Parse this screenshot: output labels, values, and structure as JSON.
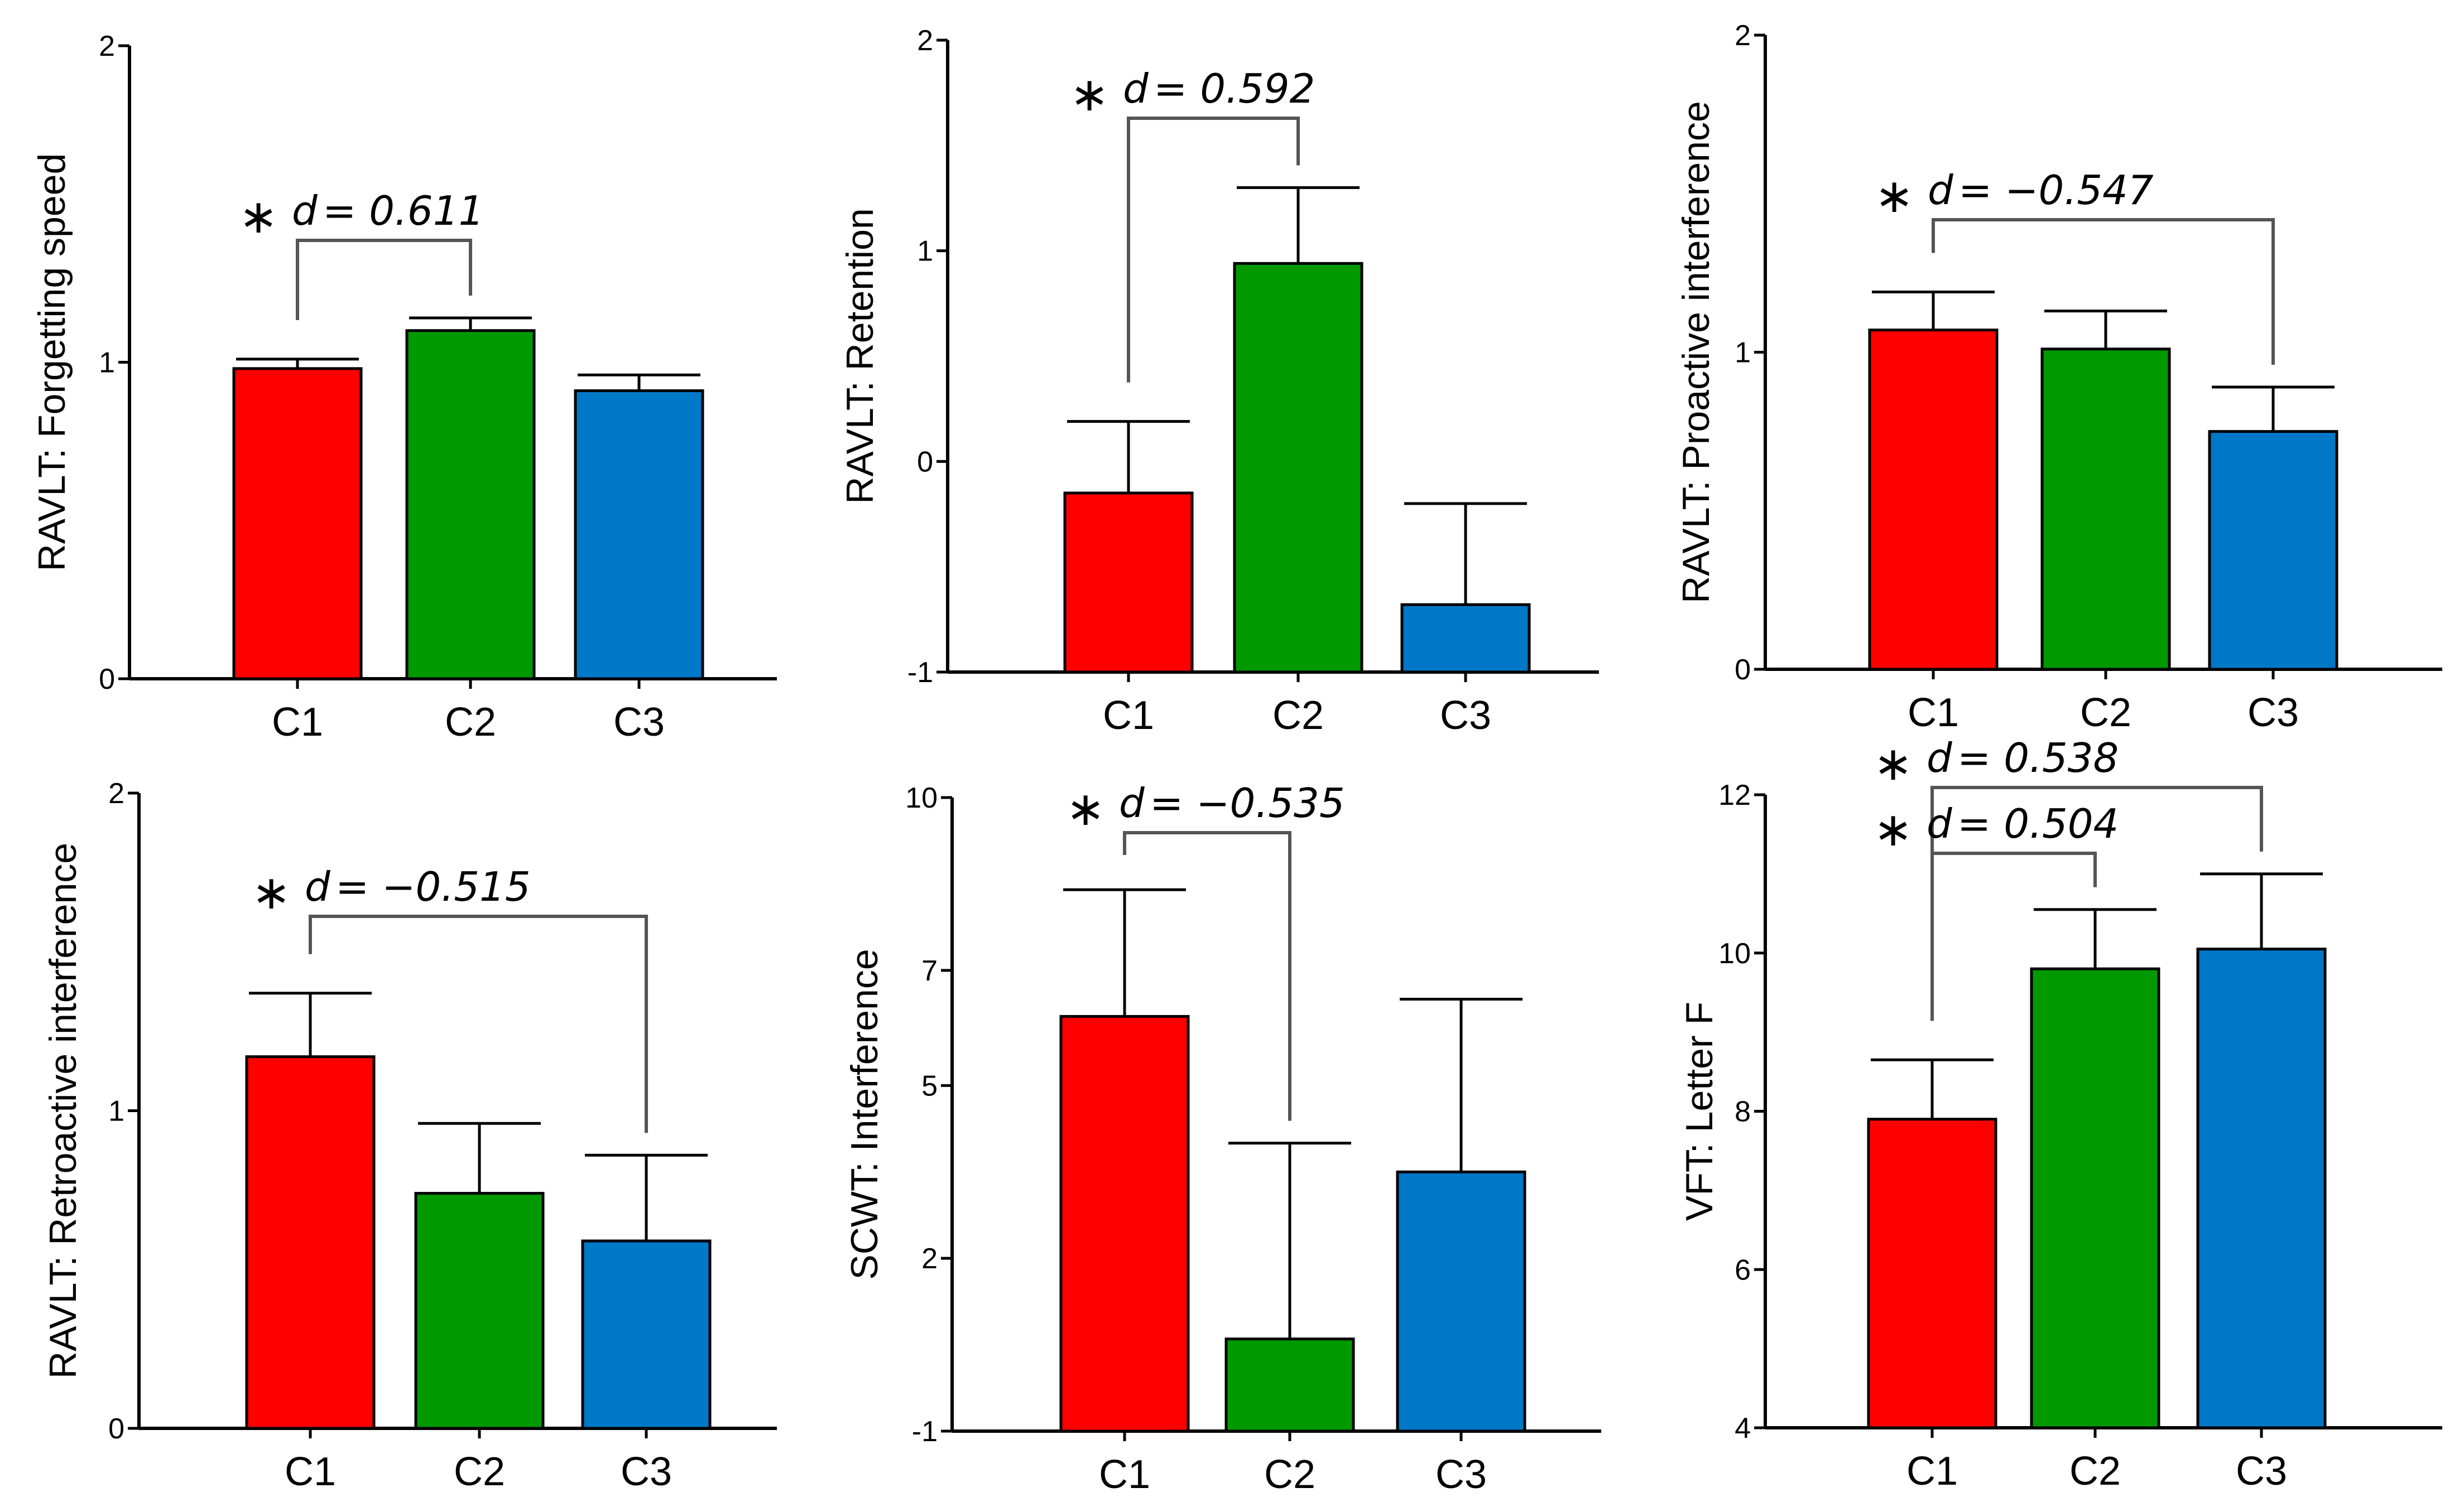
{
  "colors": {
    "C1": "#ff0000",
    "C2": "#009a00",
    "C3": "#0078c8",
    "axis": "#000000",
    "bracket": "#555555"
  },
  "chart_data": [
    {
      "type": "bar",
      "ylabel": "RAVLT: Forgetting speed",
      "categories": [
        "C1",
        "C2",
        "C3"
      ],
      "values": [
        0.98,
        1.1,
        0.91
      ],
      "errors": [
        0.03,
        0.04,
        0.05
      ],
      "ylim": [
        0,
        2
      ],
      "yticks": [
        0,
        1,
        2
      ],
      "yticklabels": [
        "0",
        "1",
        "2"
      ],
      "significance": [
        {
          "from": "C1",
          "to": "C2",
          "star": "∗",
          "d_label": "d",
          "text": " = 0.611"
        }
      ]
    },
    {
      "type": "bar",
      "ylabel": "RAVLT: Retention",
      "categories": [
        "C1",
        "C2",
        "C3"
      ],
      "values": [
        -0.15,
        0.94,
        -0.68
      ],
      "errors": [
        0.34,
        0.36,
        0.48
      ],
      "ylim": [
        -1,
        2
      ],
      "yticks": [
        -1,
        0,
        1,
        2
      ],
      "yticklabels": [
        "-1",
        "0",
        "1",
        "2"
      ],
      "significance": [
        {
          "from": "C1",
          "to": "C2",
          "star": "∗",
          "d_label": "d",
          "text": " = 0.592"
        }
      ]
    },
    {
      "type": "bar",
      "ylabel": "RAVLT: Proactive interference",
      "categories": [
        "C1",
        "C2",
        "C3"
      ],
      "values": [
        1.07,
        1.01,
        0.75
      ],
      "errors": [
        0.12,
        0.12,
        0.14
      ],
      "ylim": [
        0,
        2
      ],
      "yticks": [
        0,
        1,
        2
      ],
      "yticklabels": [
        "0",
        "1",
        "2"
      ],
      "significance": [
        {
          "from": "C1",
          "to": "C3",
          "star": "∗",
          "d_label": "d",
          "text": " = −0.547"
        }
      ]
    },
    {
      "type": "bar",
      "ylabel": "RAVLT: Retroactive interference",
      "categories": [
        "C1",
        "C2",
        "C3"
      ],
      "values": [
        1.17,
        0.74,
        0.59
      ],
      "errors": [
        0.2,
        0.22,
        0.27
      ],
      "ylim": [
        0,
        2
      ],
      "yticks": [
        0,
        1,
        2
      ],
      "yticklabels": [
        "0",
        "1",
        "2"
      ],
      "significance": [
        {
          "from": "C1",
          "to": "C3",
          "star": "∗",
          "d_label": "d",
          "text": " = −0.515"
        }
      ]
    },
    {
      "type": "bar",
      "ylabel": "SCWT: Interference",
      "categories": [
        "C1",
        "C2",
        "C3"
      ],
      "values": [
        6.2,
        0.6,
        3.5
      ],
      "errors": [
        2.2,
        3.4,
        3.0
      ],
      "ylim": [
        -1,
        10
      ],
      "yticks": [
        -1,
        2,
        5,
        7,
        10
      ],
      "yticklabels": [
        "-1",
        "2",
        "5",
        "7",
        "10"
      ],
      "significance": [
        {
          "from": "C1",
          "to": "C2",
          "star": "∗",
          "d_label": "d",
          "text": " = −0.535"
        }
      ]
    },
    {
      "type": "bar",
      "ylabel": "VFT: Letter F",
      "categories": [
        "C1",
        "C2",
        "C3"
      ],
      "values": [
        7.9,
        9.8,
        10.05
      ],
      "errors": [
        0.75,
        0.75,
        0.95
      ],
      "ylim": [
        4,
        12
      ],
      "yticks": [
        4,
        6,
        8,
        10,
        12
      ],
      "yticklabels": [
        "4",
        "6",
        "8",
        "10",
        "12"
      ],
      "significance": [
        {
          "from": "C1",
          "to": "C3",
          "star": "∗",
          "d_label": "d",
          "text": " = 0.538"
        },
        {
          "from": "C1",
          "to": "C2",
          "star": "∗",
          "d_label": "d",
          "text": " = 0.504"
        }
      ]
    }
  ]
}
